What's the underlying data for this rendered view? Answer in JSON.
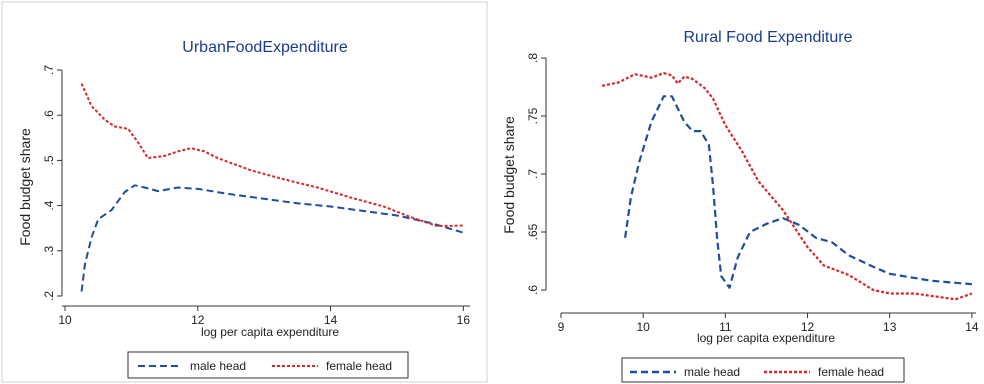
{
  "colors": {
    "male": "#1f4e9c",
    "female": "#d42a2a",
    "axis": "#333333",
    "title": "#1a3d8f",
    "frame": "#c8c8c8"
  },
  "chart_data": [
    {
      "type": "line",
      "title": "UrbanFoodExpenditure",
      "xlabel": "log per capita expenditure",
      "ylabel": "Food budget share",
      "xlim": [
        10,
        16.1
      ],
      "ylim": [
        0.2,
        0.7
      ],
      "xticks": [
        10,
        12,
        14,
        16
      ],
      "yticks": [
        0.2,
        0.3,
        0.4,
        0.5,
        0.6,
        0.7
      ],
      "ytick_labels": [
        ".2",
        ".3",
        ".4",
        ".5",
        ".6",
        ".7"
      ],
      "grid": false,
      "legend_position": "bottom",
      "series": [
        {
          "name": "male head",
          "color": "#1f4e9c",
          "style": "dashed",
          "points": [
            [
              10.25,
              0.21
            ],
            [
              10.3,
              0.27
            ],
            [
              10.4,
              0.33
            ],
            [
              10.5,
              0.37
            ],
            [
              10.7,
              0.39
            ],
            [
              10.9,
              0.43
            ],
            [
              11.05,
              0.445
            ],
            [
              11.2,
              0.44
            ],
            [
              11.4,
              0.432
            ],
            [
              11.7,
              0.44
            ],
            [
              12.0,
              0.437
            ],
            [
              12.5,
              0.425
            ],
            [
              13.0,
              0.415
            ],
            [
              13.5,
              0.405
            ],
            [
              14.0,
              0.398
            ],
            [
              14.5,
              0.388
            ],
            [
              15.0,
              0.378
            ],
            [
              15.5,
              0.362
            ],
            [
              16.0,
              0.34
            ]
          ]
        },
        {
          "name": "female head",
          "color": "#d42a2a",
          "style": "dotted",
          "points": [
            [
              10.25,
              0.67
            ],
            [
              10.4,
              0.62
            ],
            [
              10.6,
              0.59
            ],
            [
              10.75,
              0.575
            ],
            [
              10.95,
              0.57
            ],
            [
              11.1,
              0.54
            ],
            [
              11.25,
              0.505
            ],
            [
              11.5,
              0.51
            ],
            [
              11.7,
              0.52
            ],
            [
              11.9,
              0.527
            ],
            [
              12.1,
              0.52
            ],
            [
              12.3,
              0.505
            ],
            [
              12.8,
              0.478
            ],
            [
              13.3,
              0.458
            ],
            [
              13.8,
              0.44
            ],
            [
              14.3,
              0.418
            ],
            [
              14.8,
              0.398
            ],
            [
              15.2,
              0.375
            ],
            [
              15.6,
              0.355
            ],
            [
              15.8,
              0.355
            ],
            [
              16.0,
              0.356
            ]
          ]
        }
      ]
    },
    {
      "type": "line",
      "title": "Rural Food Expenditure",
      "xlabel": "log per capita expenditure",
      "ylabel": "Food budget share",
      "xlim": [
        9,
        14.05
      ],
      "ylim": [
        0.6,
        0.8
      ],
      "xticks": [
        9,
        10,
        11,
        12,
        13,
        14
      ],
      "yticks": [
        0.6,
        0.65,
        0.7,
        0.75,
        0.8
      ],
      "ytick_labels": [
        ".6",
        ".65",
        ".7",
        ".75",
        ".8"
      ],
      "grid": false,
      "legend_position": "bottom",
      "series": [
        {
          "name": "male head",
          "color": "#1f4e9c",
          "style": "dashed",
          "points": [
            [
              9.78,
              0.645
            ],
            [
              9.85,
              0.68
            ],
            [
              9.95,
              0.71
            ],
            [
              10.1,
              0.745
            ],
            [
              10.25,
              0.767
            ],
            [
              10.35,
              0.767
            ],
            [
              10.5,
              0.745
            ],
            [
              10.6,
              0.737
            ],
            [
              10.7,
              0.737
            ],
            [
              10.8,
              0.725
            ],
            [
              10.85,
              0.69
            ],
            [
              10.9,
              0.645
            ],
            [
              10.95,
              0.612
            ],
            [
              11.05,
              0.602
            ],
            [
              11.15,
              0.628
            ],
            [
              11.3,
              0.65
            ],
            [
              11.5,
              0.657
            ],
            [
              11.7,
              0.662
            ],
            [
              11.9,
              0.656
            ],
            [
              12.1,
              0.645
            ],
            [
              12.3,
              0.641
            ],
            [
              12.5,
              0.63
            ],
            [
              12.8,
              0.62
            ],
            [
              13.0,
              0.614
            ],
            [
              13.5,
              0.608
            ],
            [
              14.0,
              0.605
            ]
          ]
        },
        {
          "name": "female head",
          "color": "#d42a2a",
          "style": "dotted",
          "points": [
            [
              9.5,
              0.776
            ],
            [
              9.7,
              0.779
            ],
            [
              9.9,
              0.786
            ],
            [
              10.1,
              0.783
            ],
            [
              10.25,
              0.787
            ],
            [
              10.35,
              0.785
            ],
            [
              10.42,
              0.778
            ],
            [
              10.5,
              0.784
            ],
            [
              10.6,
              0.782
            ],
            [
              10.75,
              0.774
            ],
            [
              10.85,
              0.765
            ],
            [
              11.0,
              0.742
            ],
            [
              11.2,
              0.72
            ],
            [
              11.4,
              0.694
            ],
            [
              11.7,
              0.669
            ],
            [
              12.0,
              0.637
            ],
            [
              12.2,
              0.621
            ],
            [
              12.5,
              0.613
            ],
            [
              12.8,
              0.6
            ],
            [
              13.0,
              0.597
            ],
            [
              13.3,
              0.597
            ],
            [
              13.6,
              0.594
            ],
            [
              13.8,
              0.592
            ],
            [
              14.0,
              0.597
            ]
          ]
        }
      ]
    }
  ]
}
